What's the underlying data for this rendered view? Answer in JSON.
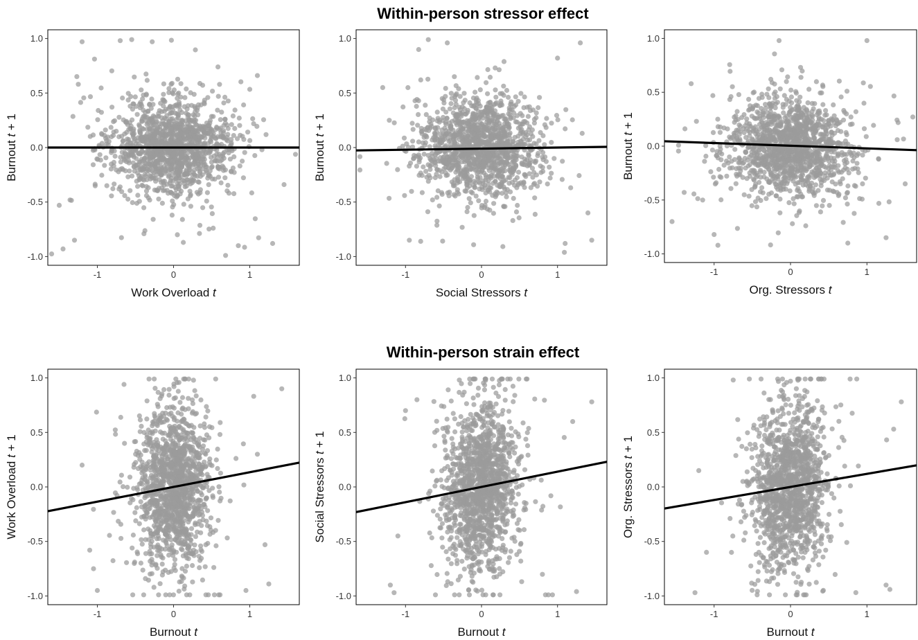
{
  "titles": {
    "top": "Within-person stressor effect",
    "bottom": "Within-person strain effect"
  },
  "colors": {
    "points": "#9b9b9b",
    "line": "#000000",
    "frame": "#000000"
  },
  "chart_data": [
    {
      "type": "scatter",
      "title": "",
      "xlabel_main": "Work Overload",
      "xlabel_italic": "t",
      "ylabel_main": "Burnout ",
      "ylabel_italic": "t",
      "ylabel_rest": " + 1",
      "xlim": [
        -1.65,
        1.65
      ],
      "ylim": [
        -1.08,
        1.08
      ],
      "xticks": [
        -1,
        0,
        1
      ],
      "yticks": [
        -1.0,
        -0.5,
        0.0,
        0.5,
        1.0
      ],
      "regression": {
        "slope": 0.0,
        "intercept": 0.0
      },
      "grid": false,
      "n_points": 1400,
      "x_sd": 0.38,
      "y_sd": 0.22,
      "outliers": [
        [
          -1.45,
          -0.93
        ],
        [
          -1.3,
          -0.85
        ],
        [
          -1.2,
          0.97
        ],
        [
          -0.7,
          0.98
        ],
        [
          1.3,
          -0.88
        ],
        [
          0.85,
          -0.9
        ],
        [
          1.1,
          0.66
        ],
        [
          -1.5,
          -0.53
        ],
        [
          1.45,
          -0.34
        ],
        [
          -0.28,
          0.97
        ],
        [
          -1.25,
          0.58
        ],
        [
          0.05,
          -0.8
        ]
      ]
    },
    {
      "type": "scatter",
      "title": "",
      "xlabel_main": "Social Stressors",
      "xlabel_italic": "t",
      "ylabel_main": "Burnout ",
      "ylabel_italic": "t",
      "ylabel_rest": " + 1",
      "xlim": [
        -1.65,
        1.65
      ],
      "ylim": [
        -1.08,
        1.08
      ],
      "xticks": [
        -1,
        0,
        1
      ],
      "yticks": [
        -1.0,
        -0.5,
        0.0,
        0.5,
        1.0
      ],
      "regression": {
        "slope": 0.01,
        "intercept": -0.01
      },
      "grid": false,
      "n_points": 1400,
      "x_sd": 0.38,
      "y_sd": 0.22,
      "outliers": [
        [
          -1.3,
          0.55
        ],
        [
          -0.95,
          -0.85
        ],
        [
          -0.7,
          0.99
        ],
        [
          -0.45,
          0.96
        ],
        [
          1.0,
          0.82
        ],
        [
          1.3,
          0.96
        ],
        [
          1.45,
          -0.85
        ],
        [
          1.1,
          -0.88
        ],
        [
          -0.8,
          -0.86
        ],
        [
          1.4,
          -0.6
        ]
      ]
    },
    {
      "type": "scatter",
      "title": "",
      "xlabel_main": "Org. Stressors",
      "xlabel_italic": "t",
      "ylabel_main": "Burnout ",
      "ylabel_italic": "t",
      "ylabel_rest": " + 1",
      "xlim": [
        -1.65,
        1.65
      ],
      "ylim": [
        -1.08,
        1.08
      ],
      "xticks": [
        -1,
        0,
        1
      ],
      "yticks": [
        -1.0,
        -0.5,
        0.0,
        0.5,
        1.0
      ],
      "regression": {
        "slope": -0.025,
        "intercept": 0.004
      },
      "grid": false,
      "n_points": 1400,
      "x_sd": 0.38,
      "y_sd": 0.22,
      "outliers": [
        [
          -1.3,
          0.58
        ],
        [
          -1.0,
          -0.82
        ],
        [
          -0.95,
          -0.92
        ],
        [
          -1.15,
          -0.5
        ],
        [
          1.0,
          0.98
        ],
        [
          1.25,
          -0.85
        ],
        [
          0.75,
          -0.9
        ],
        [
          -1.55,
          -0.7
        ],
        [
          1.5,
          -0.35
        ],
        [
          -0.15,
          0.98
        ]
      ]
    },
    {
      "type": "scatter",
      "title": "",
      "xlabel_main": "Burnout",
      "xlabel_italic": "t",
      "ylabel_main": "Work Overload ",
      "ylabel_italic": "t",
      "ylabel_rest": " + 1",
      "xlim": [
        -1.65,
        1.65
      ],
      "ylim": [
        -1.08,
        1.08
      ],
      "xticks": [
        -1,
        0,
        1
      ],
      "yticks": [
        -1.0,
        -0.5,
        0.0,
        0.5,
        1.0
      ],
      "regression": {
        "slope": 0.135,
        "intercept": 0.0
      },
      "grid": false,
      "n_points": 1400,
      "x_sd": 0.24,
      "y_sd": 0.36,
      "outliers": [
        [
          -1.0,
          -0.95
        ],
        [
          -1.2,
          0.2
        ],
        [
          -0.65,
          0.94
        ],
        [
          1.42,
          0.9
        ],
        [
          1.25,
          -0.89
        ],
        [
          1.2,
          -0.53
        ],
        [
          -1.1,
          -0.58
        ],
        [
          0.95,
          -0.95
        ],
        [
          -1.05,
          -0.75
        ],
        [
          1.1,
          0.3
        ]
      ]
    },
    {
      "type": "scatter",
      "title": "",
      "xlabel_main": "Burnout",
      "xlabel_italic": "t",
      "ylabel_main": "Social Stressors ",
      "ylabel_italic": "t",
      "ylabel_rest": " + 1",
      "xlim": [
        -1.65,
        1.65
      ],
      "ylim": [
        -1.08,
        1.08
      ],
      "xticks": [
        -1,
        0,
        1
      ],
      "yticks": [
        -1.0,
        -0.5,
        0.0,
        0.5,
        1.0
      ],
      "regression": {
        "slope": 0.14,
        "intercept": 0.0
      },
      "grid": false,
      "n_points": 1400,
      "x_sd": 0.24,
      "y_sd": 0.36,
      "outliers": [
        [
          -1.2,
          -0.9
        ],
        [
          -1.15,
          -0.97
        ],
        [
          -0.85,
          0.8
        ],
        [
          0.05,
          0.99
        ],
        [
          1.25,
          -0.96
        ],
        [
          1.45,
          0.78
        ],
        [
          -1.1,
          -0.45
        ],
        [
          1.2,
          0.6
        ],
        [
          -1.0,
          0.7
        ]
      ]
    },
    {
      "type": "scatter",
      "title": "",
      "xlabel_main": "Burnout",
      "xlabel_italic": "t",
      "ylabel_main": "Org. Stressors ",
      "ylabel_italic": "t",
      "ylabel_rest": " + 1",
      "xlim": [
        -1.65,
        1.65
      ],
      "ylim": [
        -1.08,
        1.08
      ],
      "xticks": [
        -1,
        0,
        1
      ],
      "yticks": [
        -1.0,
        -0.5,
        0.0,
        0.5,
        1.0
      ],
      "regression": {
        "slope": 0.12,
        "intercept": 0.0
      },
      "grid": false,
      "n_points": 1400,
      "x_sd": 0.24,
      "y_sd": 0.36,
      "outliers": [
        [
          -1.25,
          -0.97
        ],
        [
          -0.75,
          0.98
        ],
        [
          1.3,
          -0.94
        ],
        [
          1.25,
          -0.9
        ],
        [
          1.45,
          0.78
        ],
        [
          1.35,
          0.53
        ],
        [
          -1.2,
          0.15
        ],
        [
          -1.1,
          -0.6
        ],
        [
          0.0,
          0.97
        ]
      ]
    }
  ]
}
